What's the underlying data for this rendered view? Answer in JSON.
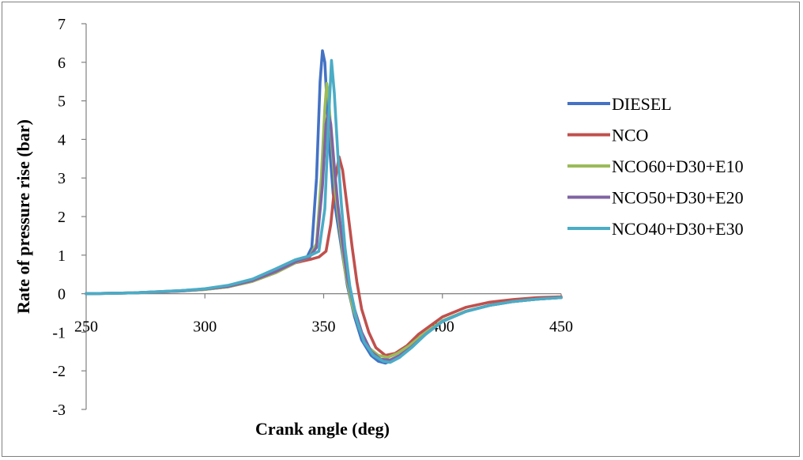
{
  "chart_data": {
    "type": "line",
    "title": "",
    "xlabel": "Crank angle (deg)",
    "ylabel": "Rate of pressure rise (bar)",
    "xlim": [
      250,
      450
    ],
    "ylim": [
      -3,
      7
    ],
    "x_ticks": [
      250,
      300,
      350,
      400,
      450
    ],
    "y_ticks": [
      -3,
      -2,
      -1,
      0,
      1,
      2,
      3,
      4,
      5,
      6,
      7
    ],
    "grid": false,
    "legend_position": "right",
    "series": [
      {
        "name": "DIESEL",
        "color": "#4472C4",
        "points": [
          [
            250,
            0
          ],
          [
            270,
            0.02
          ],
          [
            290,
            0.08
          ],
          [
            300,
            0.12
          ],
          [
            310,
            0.2
          ],
          [
            320,
            0.35
          ],
          [
            330,
            0.6
          ],
          [
            338,
            0.85
          ],
          [
            343,
            0.95
          ],
          [
            345,
            1.2
          ],
          [
            347,
            3.0
          ],
          [
            348.5,
            5.5
          ],
          [
            349.5,
            6.3
          ],
          [
            350.5,
            6.0
          ],
          [
            352,
            4.2
          ],
          [
            354,
            2.6
          ],
          [
            356,
            1.8
          ],
          [
            358,
            1.0
          ],
          [
            360,
            0.2
          ],
          [
            363,
            -0.6
          ],
          [
            366,
            -1.2
          ],
          [
            370,
            -1.6
          ],
          [
            373,
            -1.75
          ],
          [
            376,
            -1.8
          ],
          [
            380,
            -1.7
          ],
          [
            385,
            -1.45
          ],
          [
            390,
            -1.15
          ],
          [
            400,
            -0.7
          ],
          [
            410,
            -0.45
          ],
          [
            420,
            -0.3
          ],
          [
            430,
            -0.2
          ],
          [
            440,
            -0.14
          ],
          [
            450,
            -0.1
          ]
        ]
      },
      {
        "name": "NCO",
        "color": "#C0504D",
        "points": [
          [
            250,
            0
          ],
          [
            270,
            0.02
          ],
          [
            290,
            0.07
          ],
          [
            300,
            0.11
          ],
          [
            310,
            0.18
          ],
          [
            320,
            0.32
          ],
          [
            330,
            0.55
          ],
          [
            338,
            0.8
          ],
          [
            345,
            0.9
          ],
          [
            348,
            0.95
          ],
          [
            351,
            1.1
          ],
          [
            353,
            1.8
          ],
          [
            355,
            3.0
          ],
          [
            356.5,
            3.55
          ],
          [
            358,
            3.2
          ],
          [
            360,
            2.2
          ],
          [
            362,
            1.2
          ],
          [
            364,
            0.3
          ],
          [
            366,
            -0.4
          ],
          [
            369,
            -1.0
          ],
          [
            372,
            -1.4
          ],
          [
            376,
            -1.6
          ],
          [
            380,
            -1.55
          ],
          [
            385,
            -1.35
          ],
          [
            390,
            -1.05
          ],
          [
            400,
            -0.6
          ],
          [
            410,
            -0.35
          ],
          [
            420,
            -0.22
          ],
          [
            430,
            -0.15
          ],
          [
            440,
            -0.1
          ],
          [
            450,
            -0.08
          ]
        ]
      },
      {
        "name": "NCO60+D30+E10",
        "color": "#9BBB59",
        "points": [
          [
            250,
            0
          ],
          [
            270,
            0.02
          ],
          [
            290,
            0.07
          ],
          [
            300,
            0.11
          ],
          [
            310,
            0.18
          ],
          [
            320,
            0.32
          ],
          [
            330,
            0.55
          ],
          [
            338,
            0.8
          ],
          [
            344,
            0.95
          ],
          [
            347,
            1.3
          ],
          [
            349,
            3.0
          ],
          [
            350.5,
            4.8
          ],
          [
            351.3,
            5.45
          ],
          [
            352,
            5.2
          ],
          [
            353.5,
            3.8
          ],
          [
            355,
            2.6
          ],
          [
            357,
            1.6
          ],
          [
            359,
            0.6
          ],
          [
            362,
            -0.3
          ],
          [
            365,
            -0.9
          ],
          [
            369,
            -1.4
          ],
          [
            373,
            -1.6
          ],
          [
            377,
            -1.65
          ],
          [
            381,
            -1.55
          ],
          [
            386,
            -1.35
          ],
          [
            392,
            -1.05
          ],
          [
            400,
            -0.7
          ],
          [
            410,
            -0.45
          ],
          [
            420,
            -0.3
          ],
          [
            430,
            -0.2
          ],
          [
            440,
            -0.14
          ],
          [
            450,
            -0.1
          ]
        ]
      },
      {
        "name": "NCO50+D30+E20",
        "color": "#8064A2",
        "points": [
          [
            250,
            0
          ],
          [
            270,
            0.02
          ],
          [
            290,
            0.07
          ],
          [
            300,
            0.12
          ],
          [
            310,
            0.19
          ],
          [
            320,
            0.34
          ],
          [
            330,
            0.58
          ],
          [
            338,
            0.82
          ],
          [
            344,
            0.95
          ],
          [
            347,
            1.2
          ],
          [
            349.5,
            2.8
          ],
          [
            351,
            4.4
          ],
          [
            352,
            4.7
          ],
          [
            353,
            4.4
          ],
          [
            354.5,
            3.3
          ],
          [
            356,
            2.3
          ],
          [
            358,
            1.3
          ],
          [
            360,
            0.4
          ],
          [
            363,
            -0.4
          ],
          [
            366,
            -1.0
          ],
          [
            370,
            -1.5
          ],
          [
            374,
            -1.7
          ],
          [
            378,
            -1.72
          ],
          [
            382,
            -1.6
          ],
          [
            387,
            -1.38
          ],
          [
            393,
            -1.05
          ],
          [
            400,
            -0.72
          ],
          [
            410,
            -0.46
          ],
          [
            420,
            -0.3
          ],
          [
            430,
            -0.2
          ],
          [
            440,
            -0.14
          ],
          [
            450,
            -0.1
          ]
        ]
      },
      {
        "name": "NCO40+D30+E30",
        "color": "#4BACC6",
        "points": [
          [
            250,
            0
          ],
          [
            270,
            0.02
          ],
          [
            290,
            0.08
          ],
          [
            300,
            0.13
          ],
          [
            310,
            0.22
          ],
          [
            320,
            0.38
          ],
          [
            330,
            0.65
          ],
          [
            338,
            0.88
          ],
          [
            344,
            0.98
          ],
          [
            348,
            1.1
          ],
          [
            350.5,
            2.2
          ],
          [
            352,
            4.4
          ],
          [
            353.3,
            6.05
          ],
          [
            354.5,
            5.2
          ],
          [
            356,
            3.6
          ],
          [
            357.5,
            2.3
          ],
          [
            359,
            1.2
          ],
          [
            361,
            0.2
          ],
          [
            364,
            -0.7
          ],
          [
            367,
            -1.25
          ],
          [
            371,
            -1.6
          ],
          [
            375,
            -1.75
          ],
          [
            378,
            -1.78
          ],
          [
            382,
            -1.65
          ],
          [
            387,
            -1.4
          ],
          [
            393,
            -1.05
          ],
          [
            400,
            -0.72
          ],
          [
            410,
            -0.46
          ],
          [
            420,
            -0.3
          ],
          [
            430,
            -0.2
          ],
          [
            440,
            -0.14
          ],
          [
            450,
            -0.1
          ]
        ]
      }
    ]
  }
}
